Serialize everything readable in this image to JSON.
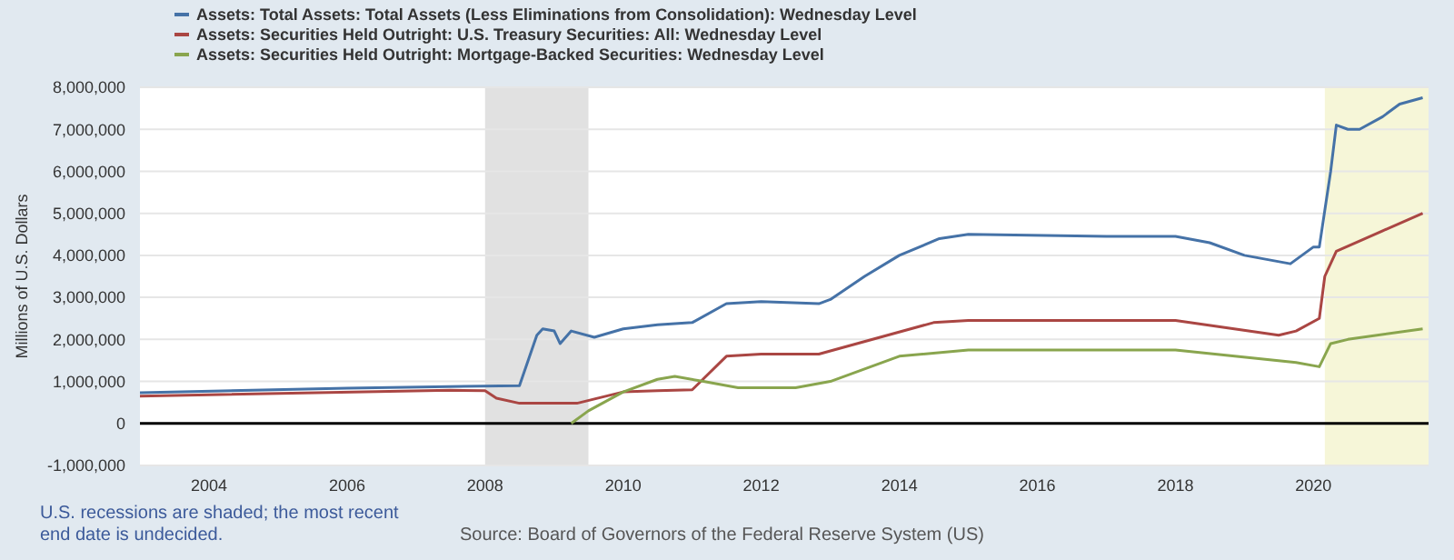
{
  "chart_data": {
    "type": "line",
    "ylabel": "Millions of U.S. Dollars",
    "x": [
      "2003-01",
      "2006-01",
      "2008-07",
      "2008-10",
      "2008-11",
      "2009-01",
      "2009-02",
      "2009-04",
      "2009-08",
      "2010-01",
      "2010-07",
      "2011-01",
      "2011-07",
      "2012-01",
      "2012-11",
      "2013-01",
      "2013-07",
      "2014-01",
      "2014-08",
      "2015-01",
      "2017-01",
      "2018-01",
      "2018-07",
      "2019-01",
      "2019-09",
      "2019-11",
      "2020-01",
      "2020-02",
      "2020-04",
      "2020-05",
      "2020-07",
      "2020-09",
      "2021-01",
      "2021-04",
      "2021-08"
    ],
    "series": [
      {
        "name": "Assets: Total Assets: Total Assets (Less Eliminations from Consolidation): Wednesday Level",
        "color": "#4572a7",
        "values": [
          730000,
          840000,
          900000,
          2100000,
          2250000,
          2200000,
          1900000,
          2200000,
          2050000,
          2250000,
          2350000,
          2400000,
          2850000,
          2900000,
          2850000,
          2950000,
          3500000,
          4000000,
          4400000,
          4500000,
          4450000,
          4450000,
          4300000,
          4000000,
          3800000,
          4000000,
          4200000,
          4200000,
          6000000,
          7100000,
          7000000,
          7000000,
          7300000,
          7600000,
          7750000
        ]
      },
      {
        "name": "Assets: Securities Held Outright: U.S. Treasury Securities: All: Wednesday Level",
        "color": "#aa4643",
        "x": [
          "2003-01",
          "2007-07",
          "2008-01",
          "2008-03",
          "2008-07",
          "2009-05",
          "2010-01",
          "2010-07",
          "2011-01",
          "2011-07",
          "2012-01",
          "2012-11",
          "2014-07",
          "2015-01",
          "2018-01",
          "2019-07",
          "2019-10",
          "2020-02",
          "2020-03",
          "2020-05",
          "2021-08"
        ],
        "values": [
          650000,
          790000,
          780000,
          600000,
          480000,
          480000,
          750000,
          780000,
          800000,
          1600000,
          1650000,
          1650000,
          2400000,
          2450000,
          2450000,
          2100000,
          2200000,
          2500000,
          3500000,
          4100000,
          5000000
        ]
      },
      {
        "name": "Assets: Securities Held Outright: Mortgage-Backed Securities: Wednesday Level",
        "color": "#89a54e",
        "x": [
          "2009-04",
          "2009-07",
          "2010-01",
          "2010-07",
          "2010-10",
          "2011-03",
          "2011-09",
          "2012-07",
          "2013-01",
          "2014-01",
          "2015-01",
          "2018-01",
          "2019-10",
          "2020-02",
          "2020-04",
          "2020-07",
          "2021-08"
        ],
        "values": [
          0,
          300000,
          750000,
          1050000,
          1120000,
          1000000,
          850000,
          850000,
          1000000,
          1600000,
          1750000,
          1750000,
          1450000,
          1350000,
          1900000,
          2000000,
          2250000
        ]
      }
    ],
    "xlim": [
      "2003-01",
      "2021-09"
    ],
    "xticks": [
      {
        "value": "2004",
        "label": "2004"
      },
      {
        "value": "2006",
        "label": "2006"
      },
      {
        "value": "2008",
        "label": "2008"
      },
      {
        "value": "2010",
        "label": "2010"
      },
      {
        "value": "2012",
        "label": "2012"
      },
      {
        "value": "2014",
        "label": "2014"
      },
      {
        "value": "2016",
        "label": "2016"
      },
      {
        "value": "2018",
        "label": "2018"
      },
      {
        "value": "2020",
        "label": "2020"
      }
    ],
    "ylim": [
      -1000000,
      8000000
    ],
    "yticks": [
      {
        "value": -1000000,
        "label": "-1,000,000"
      },
      0,
      {
        "value": 1000000,
        "label": "1,000,000"
      },
      {
        "value": 2000000,
        "label": "2,000,000"
      },
      {
        "value": 3000000,
        "label": "3,000,000"
      },
      {
        "value": 4000000,
        "label": "4,000,000"
      },
      {
        "value": 5000000,
        "label": "5,000,000"
      },
      {
        "value": 6000000,
        "label": "6,000,000"
      },
      {
        "value": 7000000,
        "label": "7,000,000"
      },
      {
        "value": 8000000,
        "label": "8,000,000"
      }
    ],
    "grid": "y",
    "legend": "top left",
    "bands": [
      {
        "axis": "x",
        "from": "2008-01",
        "to": "2009-07",
        "color": "#e1e1e1"
      },
      {
        "axis": "x",
        "from": "2020-03",
        "to": "2021-09",
        "color": "#f6f6d8"
      }
    ],
    "ref_lines": [
      {
        "axis": "y",
        "value": 0,
        "color": "#000000"
      }
    ],
    "annotations": [
      "U.S. recessions are shaded; the most recent end date is undecided.",
      "Source: Board of Governors of the Federal Reserve System (US)"
    ]
  }
}
